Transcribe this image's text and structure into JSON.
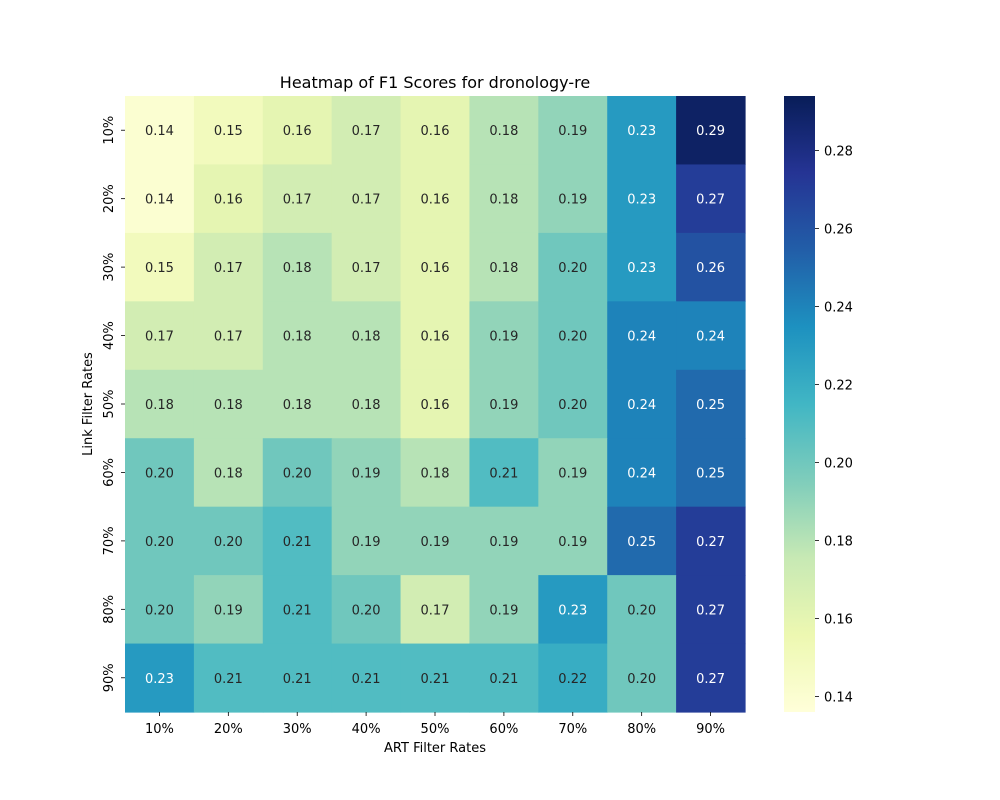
{
  "chart_data": {
    "type": "heatmap",
    "title": "Heatmap of F1 Scores for dronology-re",
    "xlabel": "ART Filter Rates",
    "ylabel": "Link Filter Rates",
    "x_categories": [
      "10%",
      "20%",
      "30%",
      "40%",
      "50%",
      "60%",
      "70%",
      "80%",
      "90%"
    ],
    "y_categories": [
      "10%",
      "20%",
      "30%",
      "40%",
      "50%",
      "60%",
      "70%",
      "80%",
      "90%"
    ],
    "values": [
      [
        0.14,
        0.15,
        0.16,
        0.17,
        0.16,
        0.18,
        0.19,
        0.23,
        0.29
      ],
      [
        0.14,
        0.16,
        0.17,
        0.17,
        0.16,
        0.18,
        0.19,
        0.23,
        0.27
      ],
      [
        0.15,
        0.17,
        0.18,
        0.17,
        0.16,
        0.18,
        0.2,
        0.23,
        0.26
      ],
      [
        0.17,
        0.17,
        0.18,
        0.18,
        0.16,
        0.19,
        0.2,
        0.24,
        0.24
      ],
      [
        0.18,
        0.18,
        0.18,
        0.18,
        0.16,
        0.19,
        0.2,
        0.24,
        0.25
      ],
      [
        0.2,
        0.18,
        0.2,
        0.19,
        0.18,
        0.21,
        0.19,
        0.24,
        0.25
      ],
      [
        0.2,
        0.2,
        0.21,
        0.19,
        0.19,
        0.19,
        0.19,
        0.25,
        0.27
      ],
      [
        0.2,
        0.19,
        0.21,
        0.2,
        0.17,
        0.19,
        0.23,
        0.2,
        0.27
      ],
      [
        0.23,
        0.21,
        0.21,
        0.21,
        0.21,
        0.21,
        0.22,
        0.2,
        0.27
      ]
    ],
    "colormap": "YlGnBu",
    "colorbar": {
      "range": [
        0.136,
        0.294
      ],
      "ticks": [
        "0.14",
        "0.16",
        "0.18",
        "0.20",
        "0.22",
        "0.24",
        "0.26",
        "0.28"
      ]
    }
  }
}
